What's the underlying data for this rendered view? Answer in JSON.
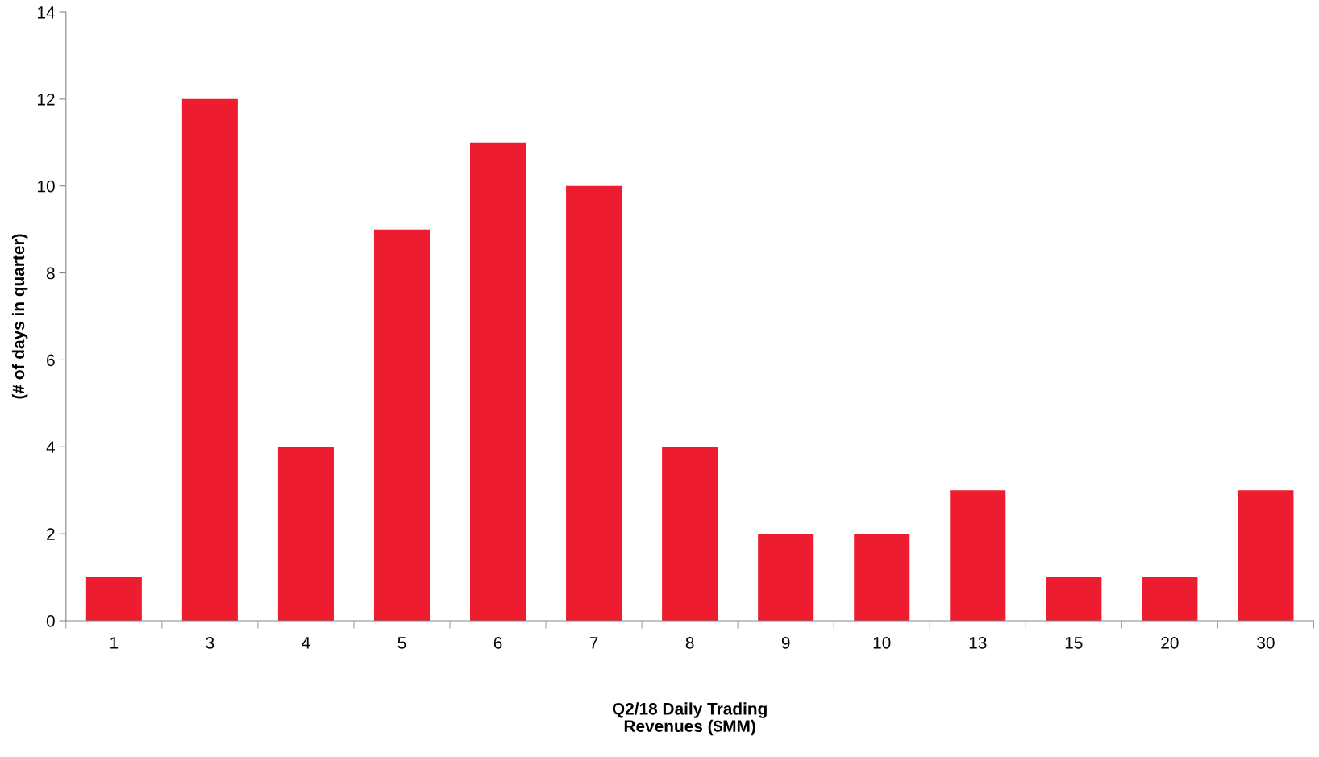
{
  "chart_data": {
    "type": "bar",
    "xlabel": "Q2/18 Daily Trading\nRevenues ($MM)",
    "ylabel": "(# of days in quarter)",
    "categories": [
      "1",
      "3",
      "4",
      "5",
      "6",
      "7",
      "8",
      "9",
      "10",
      "13",
      "15",
      "20",
      "30"
    ],
    "values": [
      1,
      12,
      4,
      9,
      11,
      10,
      4,
      2,
      2,
      3,
      1,
      1,
      3
    ],
    "color": "#ed1c2e",
    "ylim": [
      0,
      14
    ],
    "yticks": [
      0,
      2,
      4,
      6,
      8,
      10,
      12,
      14
    ],
    "grid": false,
    "legend": false
  }
}
